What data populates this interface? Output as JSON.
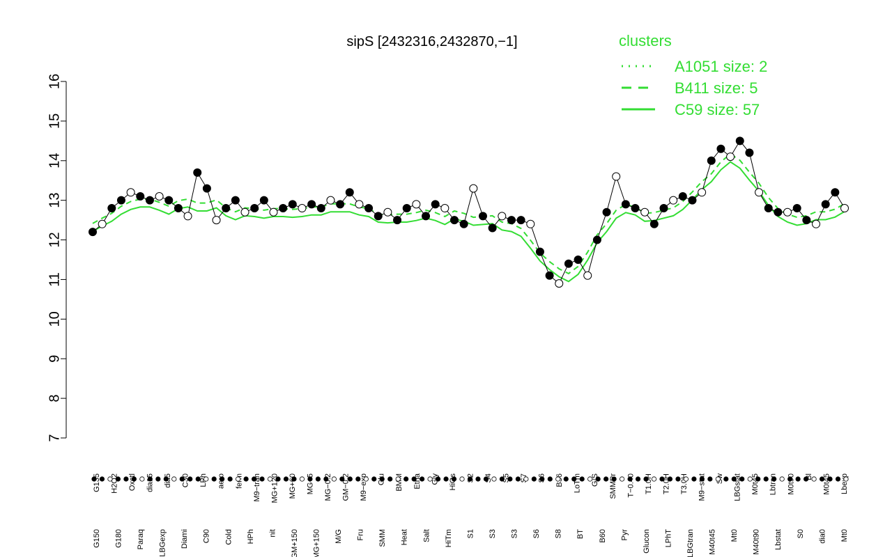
{
  "chart_data": {
    "type": "line",
    "title": "sipS [2432316,2432870,−1]",
    "xlabel": "",
    "ylabel": "",
    "ylim": [
      7,
      16
    ],
    "yticks": [
      7,
      8,
      9,
      10,
      11,
      12,
      13,
      14,
      15,
      16
    ],
    "grid": false,
    "legend_placement": "top-right",
    "legend": {
      "title": "clusters",
      "entries": [
        {
          "label": "A1051 size: 2",
          "style": "dotted"
        },
        {
          "label": "B411 size: 5",
          "style": "dashed"
        },
        {
          "label": "C59 size: 57",
          "style": "solid"
        }
      ]
    },
    "colors": {
      "axis": "#000000",
      "legend": "#33dd33",
      "points_filled": "#000000",
      "points_open": "#ffffff"
    },
    "x_labels_upper": [
      "G135",
      "H2O2",
      "Oxctl",
      "dia15",
      "dia5",
      "C30",
      "LPh",
      "aero",
      "ferm",
      "M9−tran",
      "MG+120",
      "MG+60",
      "MG+5",
      "MG−0.2",
      "GM−0.2",
      "M9−exp",
      "Glu",
      "BMM",
      "Etha",
      "Gly",
      "HiOs",
      "S2",
      "S4",
      "S5",
      "S7",
      "S6",
      "B36",
      "LoTm",
      "G/S",
      "SMMPr",
      "T−0.40",
      "T1.0H",
      "T2.0H",
      "T3.0H",
      "M9−stat",
      "Sw",
      "LBGstat",
      "M0t45",
      "Lbtran",
      "M0t90",
      "Bl",
      "M0t45",
      "Lbexp"
    ],
    "x_labels_lower": [
      "G150",
      "G180",
      "Paraq",
      "LBGexp",
      "Diami",
      "C90",
      "Cold",
      "HPh",
      "nit",
      "GM+150",
      "MG+150",
      "M/G",
      "Fru",
      "SMM",
      "Heat",
      "Salt",
      "HiTm",
      "S1",
      "S3",
      "S3",
      "S6",
      "S8",
      "BT",
      "B60",
      "Pyr",
      "Glucon",
      "LPhT",
      "LBGtran",
      "M40t45",
      "Mt0",
      "M40t90",
      "Lbstat",
      "S0",
      "dia0",
      "Mt0"
    ],
    "series": [
      {
        "x": [
          1,
          2,
          3,
          4,
          5,
          6,
          7,
          8,
          9,
          10,
          11,
          12,
          13,
          14,
          15,
          16,
          17,
          18,
          19,
          20,
          21,
          22,
          23,
          24,
          25,
          26,
          27,
          28,
          29,
          30,
          31,
          32,
          33,
          34,
          35,
          36,
          37,
          38,
          39,
          40,
          41,
          42,
          43,
          44,
          45,
          46,
          47,
          48,
          49,
          50,
          51,
          52,
          53,
          54,
          55,
          56,
          57,
          58,
          59,
          60,
          61,
          62,
          63,
          64,
          65,
          66,
          67,
          68,
          69,
          70,
          71,
          72,
          73,
          74,
          75,
          76,
          77,
          78,
          79,
          80
        ],
        "values": [
          12.2,
          12.4,
          12.8,
          13.0,
          13.2,
          13.1,
          13.0,
          13.1,
          13.0,
          12.8,
          12.6,
          13.7,
          13.3,
          12.5,
          12.8,
          13.0,
          12.7,
          12.8,
          13.0,
          12.7,
          12.8,
          12.9,
          12.8,
          12.9,
          12.8,
          13.0,
          12.9,
          13.2,
          12.9,
          12.8,
          12.6,
          12.7,
          12.5,
          12.8,
          12.9,
          12.6,
          12.9,
          12.8,
          12.5,
          12.4,
          13.3,
          12.6,
          12.3,
          12.6,
          12.5,
          12.5,
          12.4,
          11.7,
          11.1,
          10.9,
          11.4,
          11.5,
          11.1,
          12.0,
          12.7,
          13.6,
          12.9,
          12.8,
          12.7,
          12.4,
          12.8,
          13.0,
          13.1,
          13.0,
          13.2,
          14.0,
          14.3,
          14.1,
          14.5,
          14.2,
          13.2,
          12.8,
          12.7,
          12.7,
          12.8,
          12.5,
          12.4,
          12.9,
          13.2,
          12.8
        ]
      }
    ]
  }
}
